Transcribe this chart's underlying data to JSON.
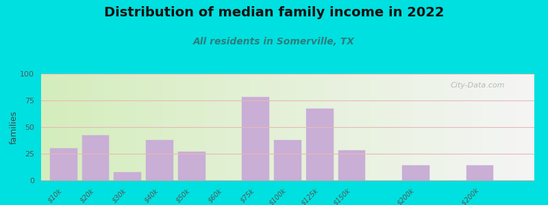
{
  "title": "Distribution of median family income in 2022",
  "subtitle": "All residents in Somerville, TX",
  "categories": [
    "$10k",
    "$20k",
    "$30k",
    "$40k",
    "$50k",
    "$60k",
    "$75k",
    "$100k",
    "$125k",
    "$150k",
    "$200k",
    "> $200k"
  ],
  "bar_positions": [
    0,
    1,
    2,
    3,
    4,
    5,
    6,
    7,
    8,
    9,
    11,
    13
  ],
  "bar_heights": [
    30,
    42,
    8,
    38,
    27,
    0,
    78,
    38,
    67,
    28,
    14,
    14
  ],
  "bar_color": "#c9aed6",
  "bar_edgecolor": "#c9aed6",
  "ylabel": "families",
  "ylim": [
    0,
    100
  ],
  "yticks": [
    0,
    25,
    50,
    75,
    100
  ],
  "bg_outer": "#00e0e0",
  "bg_left": "#d4edbc",
  "bg_right": "#f5f5f5",
  "grid_color": "#e8b8b8",
  "title_fontsize": 14,
  "subtitle_fontsize": 10,
  "watermark": "City-Data.com",
  "xlim_min": -0.7,
  "xlim_max": 14.7
}
